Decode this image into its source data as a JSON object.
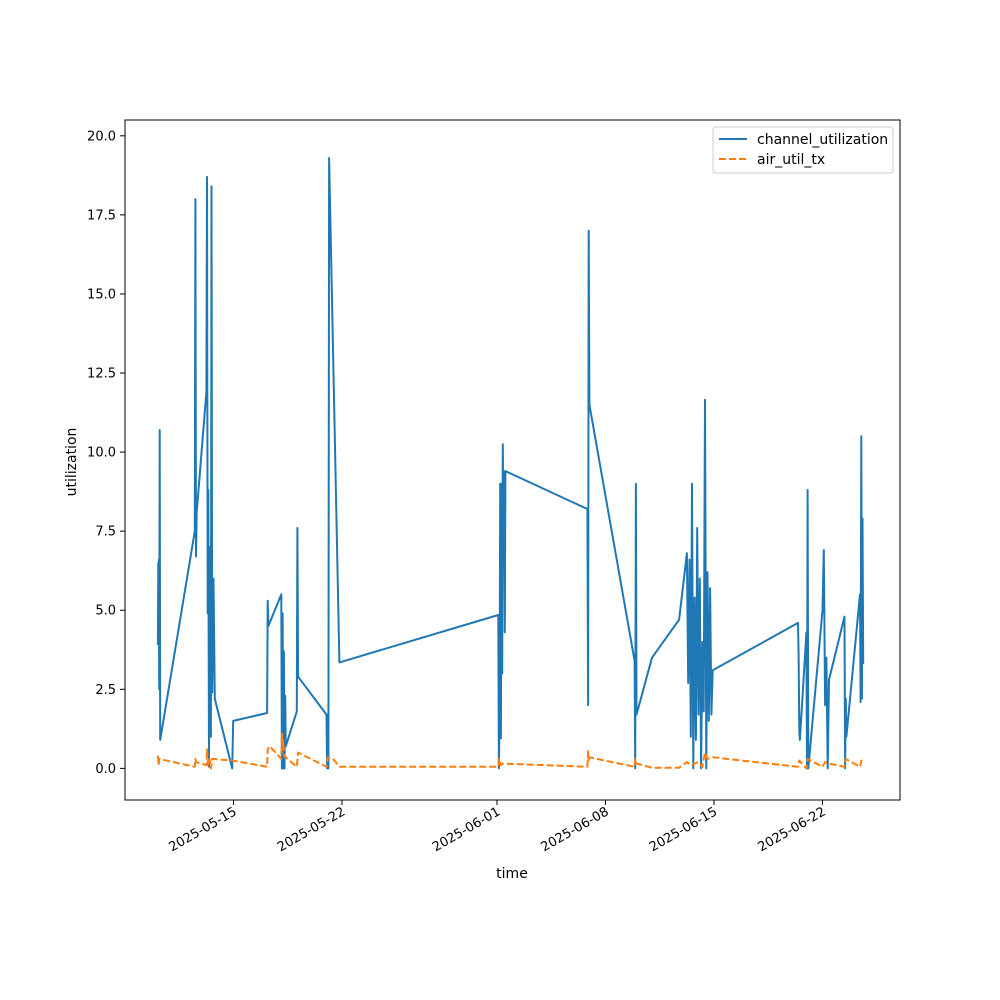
{
  "chart_data": {
    "type": "line",
    "title": "",
    "xlabel": "time",
    "ylabel": "utilization",
    "x_range": [
      "2025-05-08",
      "2025-06-27"
    ],
    "ylim": [
      -1.0,
      20.5
    ],
    "x_ticks": [
      "2025-05-15",
      "2025-05-22",
      "2025-06-01",
      "2025-06-08",
      "2025-06-15",
      "2025-06-22"
    ],
    "y_ticks": [
      "0.0",
      "2.5",
      "5.0",
      "7.5",
      "10.0",
      "12.5",
      "15.0",
      "17.5",
      "20.0"
    ],
    "grid": false,
    "legend_position": "top-right",
    "series": [
      {
        "name": "channel_utilization",
        "color": "#1f77b4",
        "style": "solid",
        "points": [
          [
            "2025-05-10 03:00",
            3.9
          ],
          [
            "2025-05-10 03:30",
            6.5
          ],
          [
            "2025-05-10 04:00",
            4.0
          ],
          [
            "2025-05-10 04:30",
            6.6
          ],
          [
            "2025-05-10 05:00",
            2.5
          ],
          [
            "2025-05-10 05:40",
            10.7
          ],
          [
            "2025-05-10 06:30",
            0.9
          ],
          [
            "2025-05-12 12:00",
            7.5
          ],
          [
            "2025-05-12 13:00",
            18.0
          ],
          [
            "2025-05-12 14:00",
            6.7
          ],
          [
            "2025-05-12 15:00",
            8.1
          ],
          [
            "2025-05-13 06:00",
            11.9
          ],
          [
            "2025-05-13 07:00",
            18.7
          ],
          [
            "2025-05-13 08:00",
            4.9
          ],
          [
            "2025-05-13 09:00",
            8.8
          ],
          [
            "2025-05-13 10:00",
            0.05
          ],
          [
            "2025-05-13 11:00",
            7.0
          ],
          [
            "2025-05-13 13:00",
            1.0
          ],
          [
            "2025-05-13 14:00",
            18.4
          ],
          [
            "2025-05-13 15:00",
            2.4
          ],
          [
            "2025-05-13 17:00",
            6.0
          ],
          [
            "2025-05-13 19:00",
            2.2
          ],
          [
            "2025-05-14 22:00",
            0.0
          ],
          [
            "2025-05-14 23:30",
            1.5
          ],
          [
            "2025-05-17 04:00",
            1.75
          ],
          [
            "2025-05-17 05:00",
            5.3
          ],
          [
            "2025-05-17 06:00",
            4.5
          ],
          [
            "2025-05-18 02:00",
            5.5
          ],
          [
            "2025-05-18 03:00",
            0.0
          ],
          [
            "2025-05-18 04:00",
            4.9
          ],
          [
            "2025-05-18 05:00",
            0.0
          ],
          [
            "2025-05-18 06:00",
            3.7
          ],
          [
            "2025-05-18 07:00",
            0.0
          ],
          [
            "2025-05-18 08:00",
            2.3
          ],
          [
            "2025-05-18 09:00",
            0.7
          ],
          [
            "2025-05-19 02:00",
            1.8
          ],
          [
            "2025-05-19 03:00",
            7.6
          ],
          [
            "2025-05-19 04:00",
            2.9
          ],
          [
            "2025-05-21 00:00",
            1.7
          ],
          [
            "2025-05-21 01:00",
            0.0
          ],
          [
            "2025-05-21 02:00",
            1.7
          ],
          [
            "2025-05-21 03:00",
            0.0
          ],
          [
            "2025-05-21 04:00",
            19.3
          ],
          [
            "2025-05-21 20:00",
            3.35
          ],
          [
            "2025-06-01 02:00",
            4.85
          ],
          [
            "2025-06-01 03:00",
            0.0
          ],
          [
            "2025-06-01 04:00",
            2.0
          ],
          [
            "2025-06-01 05:00",
            9.0
          ],
          [
            "2025-06-01 06:00",
            0.95
          ],
          [
            "2025-06-01 07:00",
            9.0
          ],
          [
            "2025-06-01 08:00",
            3.0
          ],
          [
            "2025-06-01 09:00",
            10.25
          ],
          [
            "2025-06-01 10:00",
            7.0
          ],
          [
            "2025-06-01 11:00",
            9.4
          ],
          [
            "2025-06-01 12:00",
            4.3
          ],
          [
            "2025-06-01 13:00",
            9.4
          ],
          [
            "2025-06-06 20:00",
            8.2
          ],
          [
            "2025-06-06 21:00",
            2.0
          ],
          [
            "2025-06-06 22:00",
            17.0
          ],
          [
            "2025-06-06 23:00",
            11.5
          ],
          [
            "2025-06-09 21:00",
            3.4
          ],
          [
            "2025-06-09 22:00",
            0.0
          ],
          [
            "2025-06-09 23:00",
            9.0
          ],
          [
            "2025-06-10 00:00",
            1.7
          ],
          [
            "2025-06-11 00:00",
            3.5
          ],
          [
            "2025-06-12 18:00",
            4.7
          ],
          [
            "2025-06-13 06:00",
            6.8
          ],
          [
            "2025-06-13 08:00",
            2.7
          ],
          [
            "2025-06-13 10:00",
            6.6
          ],
          [
            "2025-06-13 12:00",
            1.0
          ],
          [
            "2025-06-13 14:00",
            9.0
          ],
          [
            "2025-06-13 16:00",
            0.0
          ],
          [
            "2025-06-13 18:00",
            5.4
          ],
          [
            "2025-06-13 20:00",
            0.9
          ],
          [
            "2025-06-13 22:00",
            7.6
          ],
          [
            "2025-06-14 00:00",
            1.7
          ],
          [
            "2025-06-14 02:00",
            6.0
          ],
          [
            "2025-06-14 04:00",
            0.0
          ],
          [
            "2025-06-14 06:00",
            4.0
          ],
          [
            "2025-06-14 08:00",
            1.8
          ],
          [
            "2025-06-14 10:00",
            11.65
          ],
          [
            "2025-06-14 12:00",
            0.0
          ],
          [
            "2025-06-14 14:00",
            6.2
          ],
          [
            "2025-06-14 16:00",
            1.5
          ],
          [
            "2025-06-14 18:00",
            5.7
          ],
          [
            "2025-06-14 20:00",
            1.7
          ],
          [
            "2025-06-14 22:00",
            3.1
          ],
          [
            "2025-06-20 10:00",
            4.6
          ],
          [
            "2025-06-20 11:00",
            3.6
          ],
          [
            "2025-06-20 12:00",
            1.2
          ],
          [
            "2025-06-20 13:00",
            0.9
          ],
          [
            "2025-06-20 23:00",
            4.3
          ],
          [
            "2025-06-21 00:00",
            0.0
          ],
          [
            "2025-06-21 01:00",
            8.8
          ],
          [
            "2025-06-21 02:00",
            0.0
          ],
          [
            "2025-06-22 00:00",
            5.0
          ],
          [
            "2025-06-22 02:00",
            6.9
          ],
          [
            "2025-06-22 04:00",
            2.0
          ],
          [
            "2025-06-22 06:00",
            3.5
          ],
          [
            "2025-06-22 08:00",
            0.0
          ],
          [
            "2025-06-22 10:00",
            2.8
          ],
          [
            "2025-06-23 10:00",
            4.8
          ],
          [
            "2025-06-23 11:00",
            0.0
          ],
          [
            "2025-06-23 12:00",
            2.2
          ],
          [
            "2025-06-23 13:00",
            1.0
          ],
          [
            "2025-06-24 10:00",
            5.5
          ],
          [
            "2025-06-24 11:00",
            2.1
          ],
          [
            "2025-06-24 12:00",
            10.5
          ],
          [
            "2025-06-24 13:00",
            2.2
          ],
          [
            "2025-06-24 14:00",
            7.9
          ],
          [
            "2025-06-24 15:00",
            3.3
          ]
        ]
      },
      {
        "name": "air_util_tx",
        "color": "#ff7f0e",
        "style": "dashed",
        "points": [
          [
            "2025-05-10 03:00",
            0.4
          ],
          [
            "2025-05-10 04:00",
            0.1
          ],
          [
            "2025-05-10 05:00",
            0.3
          ],
          [
            "2025-05-12 12:00",
            0.05
          ],
          [
            "2025-05-12 13:00",
            0.3
          ],
          [
            "2025-05-12 14:00",
            0.2
          ],
          [
            "2025-05-13 06:00",
            0.1
          ],
          [
            "2025-05-13 07:00",
            0.6
          ],
          [
            "2025-05-13 09:00",
            0.1
          ],
          [
            "2025-05-13 11:00",
            0.3
          ],
          [
            "2025-05-13 13:00",
            0.0
          ],
          [
            "2025-05-13 15:00",
            0.3
          ],
          [
            "2025-05-14 22:00",
            0.25
          ],
          [
            "2025-05-17 04:00",
            0.05
          ],
          [
            "2025-05-17 05:00",
            0.6
          ],
          [
            "2025-05-17 08:00",
            0.7
          ],
          [
            "2025-05-18 02:00",
            0.3
          ],
          [
            "2025-05-18 03:00",
            1.1
          ],
          [
            "2025-05-18 04:00",
            0.6
          ],
          [
            "2025-05-18 05:00",
            0.9
          ],
          [
            "2025-05-18 06:00",
            0.4
          ],
          [
            "2025-05-19 02:00",
            0.05
          ],
          [
            "2025-05-19 04:00",
            0.5
          ],
          [
            "2025-05-21 00:00",
            0.05
          ],
          [
            "2025-05-21 02:00",
            0.35
          ],
          [
            "2025-05-21 10:00",
            0.3
          ],
          [
            "2025-05-21 20:00",
            0.05
          ],
          [
            "2025-06-01 02:00",
            0.05
          ],
          [
            "2025-06-01 03:00",
            0.3
          ],
          [
            "2025-06-01 06:00",
            0.1
          ],
          [
            "2025-06-01 09:00",
            0.15
          ],
          [
            "2025-06-06 20:00",
            0.05
          ],
          [
            "2025-06-06 21:00",
            0.55
          ],
          [
            "2025-06-06 22:00",
            0.2
          ],
          [
            "2025-06-06 23:00",
            0.35
          ],
          [
            "2025-06-09 21:00",
            0.05
          ],
          [
            "2025-06-09 22:00",
            0.3
          ],
          [
            "2025-06-10 00:00",
            0.15
          ],
          [
            "2025-06-11 00:00",
            0.02
          ],
          [
            "2025-06-12 18:00",
            0.02
          ],
          [
            "2025-06-13 06:00",
            0.2
          ],
          [
            "2025-06-13 12:00",
            0.1
          ],
          [
            "2025-06-14 00:00",
            0.2
          ],
          [
            "2025-06-14 06:00",
            0.05
          ],
          [
            "2025-06-14 10:00",
            0.5
          ],
          [
            "2025-06-14 14:00",
            0.3
          ],
          [
            "2025-06-14 22:00",
            0.35
          ],
          [
            "2025-06-20 10:00",
            0.05
          ],
          [
            "2025-06-20 12:00",
            0.25
          ],
          [
            "2025-06-20 23:00",
            0.0
          ],
          [
            "2025-06-21 01:00",
            0.3
          ],
          [
            "2025-06-22 00:00",
            0.05
          ],
          [
            "2025-06-22 04:00",
            0.2
          ],
          [
            "2025-06-22 10:00",
            0.15
          ],
          [
            "2025-06-23 10:00",
            0.05
          ],
          [
            "2025-06-23 12:00",
            0.3
          ],
          [
            "2025-06-24 10:00",
            0.05
          ],
          [
            "2025-06-24 12:00",
            0.25
          ],
          [
            "2025-06-24 15:00",
            0.2
          ]
        ]
      }
    ]
  }
}
